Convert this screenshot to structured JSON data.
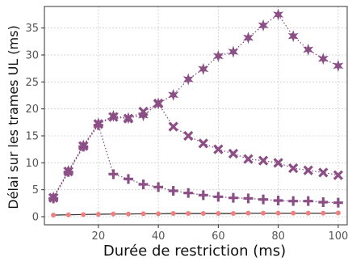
{
  "chart_data": {
    "type": "line",
    "title": "",
    "xlabel": "Durée de restriction (ms)",
    "ylabel": "Délai sur les trames UL (ms)",
    "xlim": [
      2,
      103
    ],
    "ylim": [
      -1.5,
      39
    ],
    "xticks": [
      20,
      40,
      60,
      80,
      100
    ],
    "xtick_labels": [
      "20",
      "40",
      "60",
      "80",
      "100"
    ],
    "yticks": [
      0,
      5,
      10,
      15,
      20,
      25,
      30,
      35
    ],
    "ytick_labels": [
      "0",
      "5",
      "10",
      "15",
      "20",
      "25",
      "30",
      "35"
    ],
    "grid": true,
    "legend": "none",
    "x": [
      5,
      10,
      15,
      20,
      25,
      30,
      35,
      40,
      45,
      50,
      55,
      60,
      65,
      70,
      75,
      80,
      85,
      90,
      95,
      100
    ],
    "series": [
      {
        "marker": "star",
        "color": "#8b4f86",
        "linestyle": "dotted",
        "values": [
          3.6,
          8.5,
          13.2,
          17.3,
          18.7,
          18.3,
          18.8,
          21.0,
          22.6,
          25.5,
          27.4,
          29.8,
          30.6,
          33.2,
          35.5,
          37.5,
          33.5,
          31.0,
          29.3,
          28.0
        ]
      },
      {
        "marker": "x",
        "color": "#8b4f86",
        "linestyle": "dotted",
        "values": [
          3.5,
          8.4,
          13.1,
          17.2,
          18.5,
          18.2,
          19.5,
          21.0,
          16.7,
          15.0,
          13.6,
          12.5,
          11.7,
          10.7,
          10.4,
          10.0,
          9.0,
          8.6,
          8.2,
          7.7
        ]
      },
      {
        "marker": "plus",
        "color": "#8b4f86",
        "linestyle": "dotted",
        "values": [
          3.4,
          8.3,
          13.0,
          17.0,
          7.9,
          7.0,
          6.0,
          5.5,
          4.8,
          4.4,
          4.0,
          3.7,
          3.5,
          3.4,
          3.2,
          3.0,
          2.9,
          2.9,
          2.7,
          2.6
        ]
      },
      {
        "marker": "circle",
        "color": "#f08080",
        "linestyle": "solid",
        "line_color": "#222222",
        "values": [
          0.3,
          0.35,
          0.4,
          0.45,
          0.5,
          0.5,
          0.55,
          0.55,
          0.6,
          0.6,
          0.6,
          0.6,
          0.6,
          0.65,
          0.65,
          0.65,
          0.65,
          0.65,
          0.65,
          0.7
        ]
      }
    ]
  }
}
